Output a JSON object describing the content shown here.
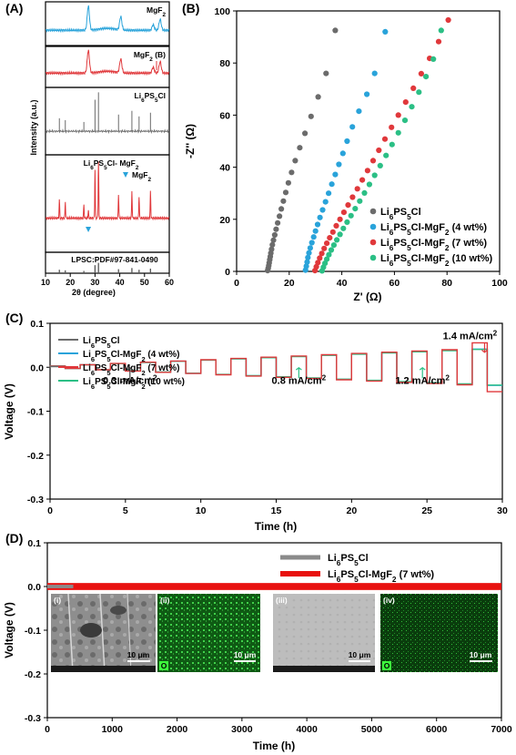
{
  "chart_data": [
    {
      "panel_label": "(A)",
      "type": "line",
      "xlabel": "2θ (degree)",
      "ylabel": "Intensity (a.u.)",
      "xlim": [
        10,
        60
      ],
      "x_ticks": [
        "10",
        "20",
        "30",
        "40",
        "50",
        "60"
      ],
      "sub_panels": [
        {
          "label": "MgF2",
          "label_html": [
            "MgF",
            "2",
            ""
          ],
          "color": "#29a3da",
          "peaks": [
            27.3,
            40.4,
            53.5,
            56.3
          ]
        },
        {
          "label": "MgF2 (B)",
          "label_html": [
            "MgF",
            "2",
            " (B)"
          ],
          "color": "#e0383b",
          "peaks": [
            27.3,
            40.4,
            53.5,
            56.3
          ]
        },
        {
          "label": "Li6PS5Cl",
          "label_html": [
            "Li",
            "6",
            "PS",
            "5",
            "Cl"
          ],
          "color": "#6b6b6b",
          "peaks": [
            15.6,
            18.0,
            25.5,
            30.0,
            31.4,
            39.5,
            44.9,
            47.8,
            52.4
          ]
        },
        {
          "label": "Li6PS5Cl- MgF2",
          "label_html": [
            "Li",
            "6",
            "PS",
            "5",
            "Cl- MgF",
            "2"
          ],
          "color": "#e0383b",
          "peaks": [
            15.6,
            18.0,
            25.5,
            27.3,
            30.0,
            31.4,
            39.5,
            44.9,
            47.8,
            52.4
          ],
          "marker_label": "MgF2"
        },
        {
          "label": "LPSC:PDF#97-841-0490",
          "color": "#555555",
          "peaks": [
            15.6,
            18.0,
            25.5,
            30.0,
            31.4,
            39.5,
            44.9,
            47.8,
            52.4
          ]
        }
      ]
    },
    {
      "panel_label": "(B)",
      "type": "scatter",
      "xlabel": "Z' (Ω)",
      "ylabel": "-Z'' (Ω)",
      "xlim": [
        0,
        100
      ],
      "ylim": [
        0,
        100
      ],
      "x_ticks": [
        "0",
        "20",
        "40",
        "60",
        "80",
        "100"
      ],
      "y_ticks": [
        "0",
        "20",
        "40",
        "60",
        "80",
        "100"
      ],
      "series": [
        {
          "name": "Li6PS5Cl",
          "color": "#6b6b6b",
          "x": [
            11.8,
            12.0,
            12.2,
            12.4,
            12.6,
            12.8,
            13.0,
            13.3,
            13.6,
            14.0,
            14.5,
            15.0,
            15.6,
            16.3,
            17.0,
            17.8,
            18.7,
            19.7,
            20.9,
            22.3,
            24.0,
            26.0,
            28.3,
            31.0,
            34.0,
            37.5
          ],
          "y": [
            0.3,
            1.2,
            2.2,
            3.3,
            4.5,
            5.7,
            7.0,
            8.5,
            10.2,
            12.0,
            14.0,
            16.2,
            18.6,
            21.2,
            24.0,
            27.0,
            30.3,
            34.0,
            38.0,
            42.5,
            47.5,
            53.0,
            59.5,
            67.0,
            76.0,
            92.5
          ]
        },
        {
          "name": "Li6PS5Cl-MgF2 (4 wt%)",
          "color": "#29a3da",
          "x": [
            26.2,
            26.5,
            26.8,
            27.1,
            27.5,
            28.0,
            28.6,
            29.3,
            30.0,
            30.8,
            31.7,
            32.7,
            33.8,
            35.0,
            36.2,
            37.5,
            38.9,
            40.4,
            42.0,
            44.0,
            46.5,
            49.5,
            52.5,
            56.5
          ],
          "y": [
            0.5,
            2.0,
            3.6,
            5.3,
            7.1,
            9.0,
            11.0,
            13.2,
            15.5,
            18.0,
            20.7,
            23.6,
            26.7,
            30.0,
            33.5,
            37.2,
            41.1,
            45.3,
            50.0,
            55.5,
            61.5,
            68.0,
            76.0,
            92.0
          ]
        },
        {
          "name": "Li6PS5Cl-MgF2 (7 wt%)",
          "color": "#e0383b",
          "x": [
            29.8,
            30.3,
            30.9,
            31.6,
            32.4,
            33.3,
            34.3,
            35.4,
            36.6,
            37.9,
            39.3,
            40.8,
            42.4,
            44.1,
            45.9,
            47.8,
            49.8,
            51.9,
            54.1,
            56.4,
            58.9,
            61.5,
            64.3,
            67.2,
            70.2,
            73.4,
            76.8,
            80.5
          ],
          "y": [
            0.3,
            1.8,
            3.4,
            5.1,
            6.9,
            8.8,
            10.8,
            12.9,
            15.1,
            17.5,
            20.0,
            22.7,
            25.5,
            28.5,
            31.7,
            35.1,
            38.7,
            42.5,
            46.5,
            50.8,
            55.3,
            60.0,
            65.0,
            70.3,
            75.9,
            81.8,
            88.2,
            96.5
          ]
        },
        {
          "name": "Li6PS5Cl-MgF2 (10 wt%)",
          "color": "#2bbf85",
          "x": [
            32.5,
            33.0,
            33.6,
            34.3,
            35.1,
            36.0,
            37.0,
            38.1,
            39.3,
            40.6,
            42.0,
            43.5,
            45.1,
            46.8,
            48.6,
            50.5,
            52.5,
            54.6,
            56.8,
            59.1,
            61.5,
            64.0,
            66.6,
            69.3,
            72.0,
            74.8,
            77.8
          ],
          "y": [
            0.2,
            1.6,
            3.1,
            4.7,
            6.4,
            8.2,
            10.1,
            12.1,
            14.2,
            16.5,
            18.9,
            21.4,
            24.1,
            27.0,
            30.1,
            33.4,
            36.9,
            40.6,
            44.5,
            48.7,
            53.2,
            58.0,
            63.2,
            68.8,
            74.8,
            81.5,
            92.5
          ]
        }
      ]
    },
    {
      "panel_label": "(C)",
      "type": "line",
      "xlabel": "Time (h)",
      "ylabel": "Voltage (V)",
      "xlim": [
        0,
        30
      ],
      "ylim": [
        -0.3,
        0.1
      ],
      "x_ticks": [
        "0",
        "5",
        "10",
        "15",
        "20",
        "25",
        "30"
      ],
      "y_ticks": [
        "0.1",
        "0.0",
        "-0.1",
        "-0.2",
        "-0.3"
      ],
      "step_duration_h": 1,
      "steps_amplitude_V": [
        0.003,
        0.006,
        0.009,
        0.012,
        0.015,
        0.018,
        0.021,
        0.024,
        0.027,
        0.03,
        0.033,
        0.036,
        0.039,
        0.042,
        0.045
      ],
      "series": [
        {
          "name": "Li6PS5Cl",
          "color": "#6b6b6b",
          "scale": 0.55,
          "end_h": 0.9
        },
        {
          "name": "Li6PS5Cl-MgF2 (4 wt%)",
          "color": "#29a3da",
          "scale": 0.92,
          "end_h": 30
        },
        {
          "name": "Li6PS5Cl-MgF2 (7 wt%)",
          "color": "#e0383b",
          "scale": 0.95,
          "end_h": 30
        },
        {
          "name": "Li6PS5Cl-MgF2 (10 wt%)",
          "color": "#2bbf85",
          "scale": 0.9,
          "end_h": 30
        }
      ],
      "annotations": [
        {
          "text": "0.3 mA/cm2",
          "main": "0.3 mA/cm",
          "sup": "2",
          "x": 5.3
        },
        {
          "text": "0.8 mA/cm2",
          "main": "0.8 mA/cm",
          "sup": "2",
          "x": 16.5
        },
        {
          "text": "1.2 mA/cm2",
          "main": "1.2 mA/cm",
          "sup": "2",
          "x": 24.7
        },
        {
          "text": "1.4 mA/cm2",
          "main": "1.4 mA/cm",
          "sup": "2",
          "x": 28.7
        }
      ]
    },
    {
      "panel_label": "(D)",
      "type": "line",
      "xlabel": "Time (h)",
      "ylabel": "Voltage (V)",
      "xlim": [
        0,
        7000
      ],
      "ylim": [
        -0.3,
        0.1
      ],
      "x_ticks": [
        "0",
        "1000",
        "2000",
        "3000",
        "4000",
        "5000",
        "6000",
        "7000"
      ],
      "y_ticks": [
        "0.1",
        "0.0",
        "-0.1",
        "-0.2",
        "-0.3"
      ],
      "series": [
        {
          "name": "Li6PS5Cl",
          "color": "#8a8a8a",
          "end_h": 400,
          "amplitude_V": 0.004
        },
        {
          "name": "Li6PS5Cl-MgF2 (7 wt%)",
          "color": "#e8110f",
          "end_h": 7000,
          "amplitude_V": 0.008
        }
      ],
      "inset_labels": [
        "(i)",
        "(ii)",
        "(iii)",
        "(iv)"
      ],
      "inset_scale_bar": "10 μm",
      "inset_element": "O"
    }
  ]
}
